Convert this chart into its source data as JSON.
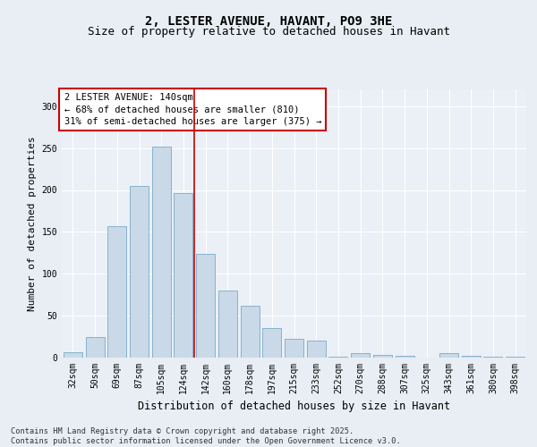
{
  "title_line1": "2, LESTER AVENUE, HAVANT, PO9 3HE",
  "title_line2": "Size of property relative to detached houses in Havant",
  "xlabel": "Distribution of detached houses by size in Havant",
  "ylabel": "Number of detached properties",
  "categories": [
    "32sqm",
    "50sqm",
    "69sqm",
    "87sqm",
    "105sqm",
    "124sqm",
    "142sqm",
    "160sqm",
    "178sqm",
    "197sqm",
    "215sqm",
    "233sqm",
    "252sqm",
    "270sqm",
    "288sqm",
    "307sqm",
    "325sqm",
    "343sqm",
    "361sqm",
    "380sqm",
    "398sqm"
  ],
  "values": [
    6,
    25,
    157,
    205,
    252,
    196,
    124,
    80,
    62,
    35,
    22,
    20,
    1,
    5,
    3,
    2,
    0,
    5,
    2,
    1,
    1
  ],
  "bar_color": "#c9d9e8",
  "bar_edge_color": "#7aaac8",
  "vline_x": 6,
  "vline_color": "#cc0000",
  "annotation_text": "2 LESTER AVENUE: 140sqm\n← 68% of detached houses are smaller (810)\n31% of semi-detached houses are larger (375) →",
  "annotation_box_color": "#ffffff",
  "annotation_box_edge_color": "#cc0000",
  "background_color": "#e8eef4",
  "plot_bg_color": "#eaf0f6",
  "ylim": [
    0,
    320
  ],
  "yticks": [
    0,
    50,
    100,
    150,
    200,
    250,
    300
  ],
  "footer_text": "Contains HM Land Registry data © Crown copyright and database right 2025.\nContains public sector information licensed under the Open Government Licence v3.0.",
  "title_fontsize": 10,
  "subtitle_fontsize": 9,
  "tick_fontsize": 7,
  "label_fontsize": 8.5,
  "annotation_fontsize": 7.5,
  "ylabel_fontsize": 8
}
